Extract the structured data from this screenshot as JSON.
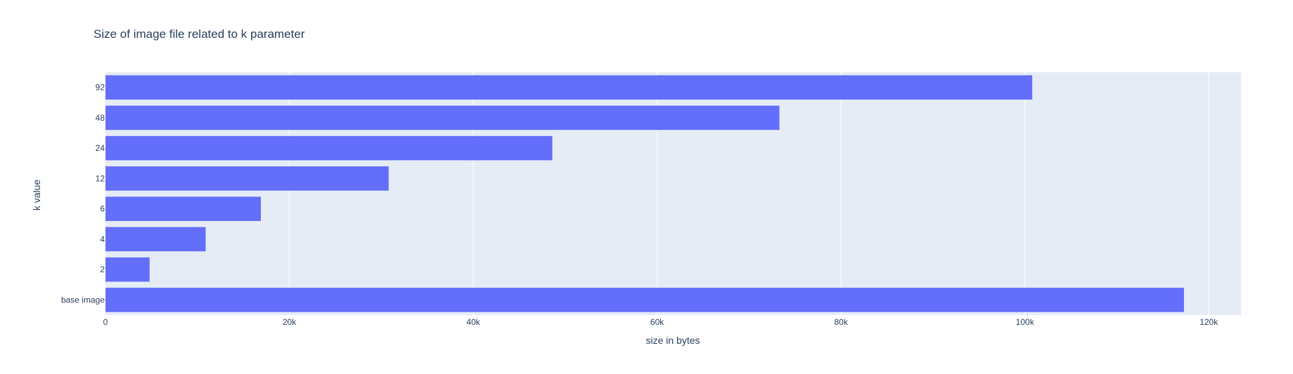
{
  "chart_data": {
    "type": "bar",
    "orientation": "horizontal",
    "title": "Size of image file related to k parameter",
    "xlabel": "size in bytes",
    "ylabel": "k value",
    "categories": [
      "base image",
      "2",
      "4",
      "6",
      "12",
      "24",
      "48",
      "92"
    ],
    "values": [
      117300,
      4800,
      10900,
      16900,
      30800,
      48600,
      73300,
      100800
    ],
    "xlim": [
      0,
      123500
    ],
    "xticks": [
      0,
      20000,
      40000,
      60000,
      80000,
      100000,
      120000
    ],
    "xtick_labels": [
      "0",
      "20k",
      "40k",
      "60k",
      "80k",
      "100k",
      "120k"
    ],
    "grid": true,
    "colors": {
      "bar": "#636efa",
      "plot_background": "#e5ecf6",
      "gridline": "#ffffff",
      "text": "#2a3f5f"
    }
  }
}
